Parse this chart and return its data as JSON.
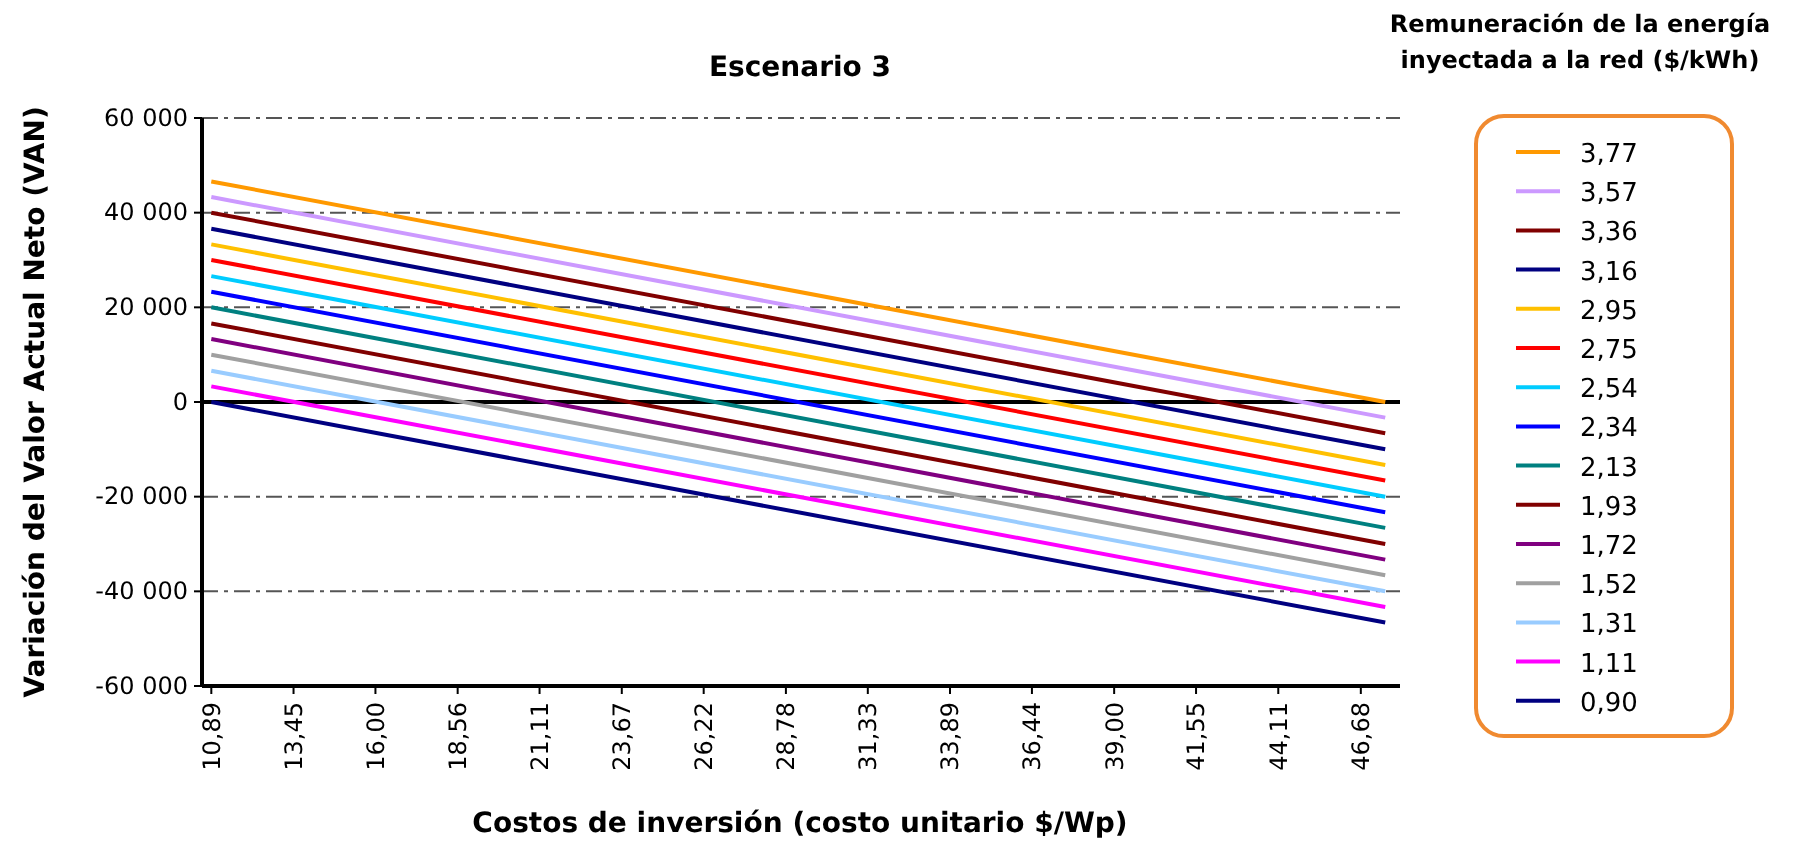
{
  "chart_data": {
    "type": "line",
    "title": "Escenario 3",
    "xlabel": "Costos de inversión (costo unitario $/Wp)",
    "ylabel": "Variación del Valor Actual Neto (VAN)",
    "legend_title": "Remuneración de la energía inyectada a la red ($/kWh)",
    "legend": "right",
    "grid": "y",
    "marker": "none",
    "line_style": "solid",
    "x": [
      10.89,
      47.44
    ],
    "xlim": [
      10.6,
      47.9
    ],
    "xticks": [
      {
        "value": 10.89,
        "label": "10,89"
      },
      {
        "value": 13.45,
        "label": "13,45"
      },
      {
        "value": 16.0,
        "label": "16,00"
      },
      {
        "value": 18.56,
        "label": "18,56"
      },
      {
        "value": 21.11,
        "label": "21,11"
      },
      {
        "value": 23.67,
        "label": "23,67"
      },
      {
        "value": 26.22,
        "label": "26,22"
      },
      {
        "value": 28.78,
        "label": "28,78"
      },
      {
        "value": 31.33,
        "label": "31,33"
      },
      {
        "value": 33.89,
        "label": "33,89"
      },
      {
        "value": 36.44,
        "label": "36,44"
      },
      {
        "value": 39.0,
        "label": "39,00"
      },
      {
        "value": 41.55,
        "label": "41,55"
      },
      {
        "value": 44.11,
        "label": "44,11"
      },
      {
        "value": 46.68,
        "label": "46,68"
      }
    ],
    "ylim": [
      -60000,
      60000
    ],
    "yticks": [
      {
        "value": -60000,
        "label": "-60 000"
      },
      {
        "value": -40000,
        "label": "-40 000"
      },
      {
        "value": -20000,
        "label": "-20 000"
      },
      0,
      {
        "value": 20000,
        "label": "20 000"
      },
      {
        "value": 40000,
        "label": "40 000"
      },
      {
        "value": 60000,
        "label": "60 000"
      }
    ],
    "series": [
      {
        "name": "3,77",
        "color": "#ff9900",
        "values": [
          46600,
          0
        ]
      },
      {
        "name": "3,57",
        "color": "#cc99ff",
        "values": [
          43300,
          -3300
        ]
      },
      {
        "name": "3,36",
        "color": "#800000",
        "values": [
          40000,
          -6600
        ]
      },
      {
        "name": "3,16",
        "color": "#000080",
        "values": [
          36600,
          -10000
        ]
      },
      {
        "name": "2,95",
        "color": "#ffc000",
        "values": [
          33300,
          -13300
        ]
      },
      {
        "name": "2,75",
        "color": "#ff0000",
        "values": [
          30000,
          -16600
        ]
      },
      {
        "name": "2,54",
        "color": "#00ccff",
        "values": [
          26600,
          -20000
        ]
      },
      {
        "name": "2,34",
        "color": "#0000ff",
        "values": [
          23300,
          -23300
        ]
      },
      {
        "name": "2,13",
        "color": "#008080",
        "values": [
          20000,
          -26600
        ]
      },
      {
        "name": "1,93",
        "color": "#800000",
        "values": [
          16600,
          -30000
        ]
      },
      {
        "name": "1,72",
        "color": "#800080",
        "values": [
          13300,
          -33300
        ]
      },
      {
        "name": "1,52",
        "color": "#a0a0a0",
        "values": [
          10000,
          -36600
        ]
      },
      {
        "name": "1,31",
        "color": "#99ccff",
        "values": [
          6600,
          -40000
        ]
      },
      {
        "name": "1,11",
        "color": "#ff00ff",
        "values": [
          3300,
          -43300
        ]
      },
      {
        "name": "0,90",
        "color": "#000080",
        "values": [
          0,
          -46600
        ]
      }
    ]
  }
}
